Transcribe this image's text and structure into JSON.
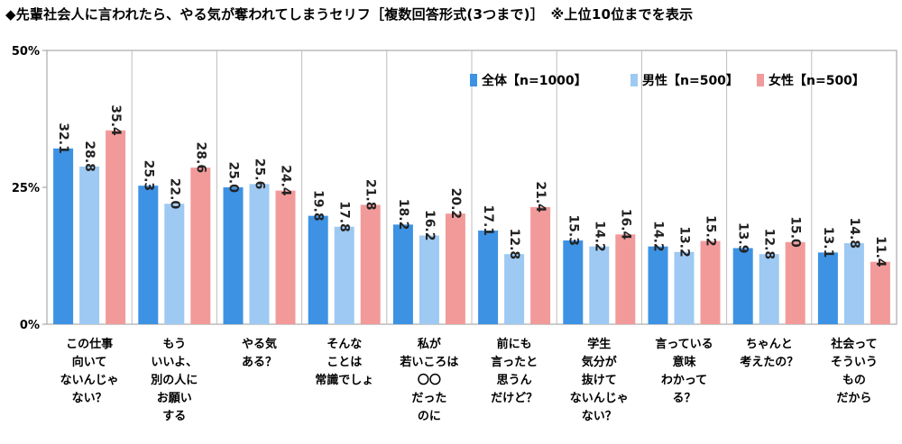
{
  "title": "◆先輩社会人に言われたら、やる気が奪われてしまうセリフ［複数回答形式(3つまで)］　※上位10位までを表示",
  "chart_data": {
    "type": "bar",
    "categories": [
      [
        "この仕事",
        "向いて",
        "ないんじゃ",
        "ない？"
      ],
      [
        "もう",
        "いいよ、",
        "別の人に",
        "お願い",
        "する"
      ],
      [
        "やる気",
        "ある？"
      ],
      [
        "そんな",
        "ことは",
        "常識でしょ"
      ],
      [
        "私が",
        "若いころは",
        "〇〇",
        "だった",
        "のに"
      ],
      [
        "前にも",
        "言ったと",
        "思うん",
        "だけど？"
      ],
      [
        "学生",
        "気分が",
        "抜けて",
        "ないんじゃ",
        "ない？"
      ],
      [
        "言っている",
        "意味",
        "わかって",
        "る？"
      ],
      [
        "ちゃんと",
        "考えたの？"
      ],
      [
        "社会って",
        "そういう",
        "もの",
        "だから"
      ]
    ],
    "series": [
      {
        "name": "全体【n=1000】",
        "color": "#3d92e4",
        "values": [
          32.1,
          25.3,
          25.0,
          19.8,
          18.2,
          17.1,
          15.3,
          14.2,
          13.9,
          13.1
        ]
      },
      {
        "name": "男性【n=500】",
        "color": "#9dc9f3",
        "values": [
          28.8,
          22.0,
          25.6,
          17.8,
          16.2,
          12.8,
          14.2,
          13.2,
          12.8,
          14.8
        ]
      },
      {
        "name": "女性【n=500】",
        "color": "#f29a9a",
        "values": [
          35.4,
          28.6,
          24.4,
          21.8,
          20.2,
          21.4,
          16.4,
          15.2,
          15.0,
          11.4
        ]
      }
    ],
    "ylim": [
      0,
      50
    ],
    "yticks": [
      "0%",
      "25%",
      "50%"
    ],
    "grid": "vertical category separators",
    "legend": "top-right"
  }
}
